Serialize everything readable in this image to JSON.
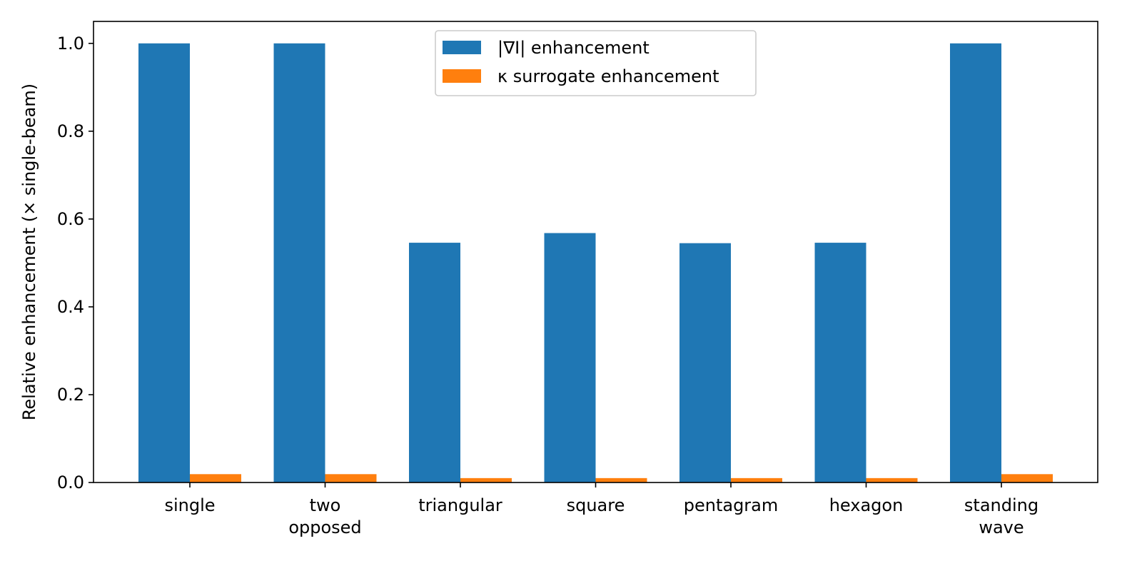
{
  "chart_data": {
    "type": "bar",
    "title": "",
    "xlabel": "",
    "ylabel": "Relative enhancement (× single-beam)",
    "categories": [
      [
        "single"
      ],
      [
        "two",
        "opposed"
      ],
      [
        "triangular"
      ],
      [
        "square"
      ],
      [
        "pentagram"
      ],
      [
        "hexagon"
      ],
      [
        "standing",
        "wave"
      ]
    ],
    "series": [
      {
        "name": "|∇I| enhancement",
        "color": "#1f77b4",
        "values": [
          1.0,
          1.0,
          0.546,
          0.568,
          0.545,
          0.546,
          1.0
        ]
      },
      {
        "name": "κ surrogate enhancement",
        "color": "#ff7f0e",
        "values": [
          0.019,
          0.019,
          0.01,
          0.01,
          0.01,
          0.01,
          0.019
        ]
      }
    ],
    "ylim": [
      0,
      1.05
    ],
    "yticks": [
      "0.0",
      "0.2",
      "0.4",
      "0.6",
      "0.8",
      "1.0"
    ],
    "grid": false,
    "legend_position": "top-center"
  }
}
